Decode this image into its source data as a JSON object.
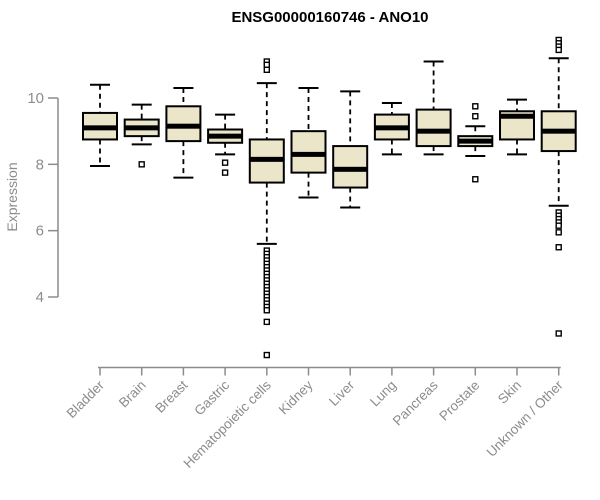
{
  "title": "ENSG00000160746 - ANO10",
  "colors": {
    "background": "#ffffff",
    "title": "#000000",
    "axis": "#8c8c8c",
    "box_fill": "#ebe6ca",
    "box_stroke": "#000000",
    "median": "#000000",
    "whisker": "#000000",
    "outlier_stroke": "#000000",
    "outlier_fill": "#ffffff"
  },
  "chart_data": {
    "type": "boxplot",
    "title": "ENSG00000160746 - ANO10",
    "xlabel": "",
    "ylabel": "Expression",
    "axis_y_range": [
      4,
      10
    ],
    "yticks": [
      10,
      8,
      6,
      4
    ],
    "grid": false,
    "legend": "none",
    "categories": [
      "Bladder",
      "Brain",
      "Breast",
      "Gastric",
      "Hematopoietic cells",
      "Kidney",
      "Liver",
      "Lung",
      "Pancreas",
      "Prostate",
      "Skin",
      "Unknown / Other"
    ],
    "series": [
      {
        "name": "Bladder",
        "whisker_low": 7.95,
        "q1": 8.75,
        "median": 9.1,
        "q3": 9.55,
        "whisker_high": 10.4,
        "outliers": []
      },
      {
        "name": "Brain",
        "whisker_low": 8.6,
        "q1": 8.85,
        "median": 9.1,
        "q3": 9.35,
        "whisker_high": 9.8,
        "outliers": [
          8.0
        ]
      },
      {
        "name": "Breast",
        "whisker_low": 7.6,
        "q1": 8.7,
        "median": 9.15,
        "q3": 9.75,
        "whisker_high": 10.3,
        "outliers": []
      },
      {
        "name": "Gastric",
        "whisker_low": 8.3,
        "q1": 8.65,
        "median": 8.85,
        "q3": 9.05,
        "whisker_high": 9.5,
        "outliers": [
          8.05,
          7.75
        ]
      },
      {
        "name": "Hematopoietic cells",
        "whisker_low": 5.6,
        "q1": 7.45,
        "median": 8.15,
        "q3": 8.75,
        "whisker_high": 10.45,
        "outliers": [
          11.1,
          11.0,
          10.85,
          5.4,
          5.3,
          5.2,
          5.1,
          5.0,
          4.9,
          4.8,
          4.7,
          4.6,
          4.5,
          4.4,
          4.3,
          4.2,
          4.1,
          4.0,
          3.9,
          3.8,
          3.7,
          3.6,
          3.25,
          2.25
        ]
      },
      {
        "name": "Kidney",
        "whisker_low": 7.0,
        "q1": 7.75,
        "median": 8.3,
        "q3": 9.0,
        "whisker_high": 10.3,
        "outliers": []
      },
      {
        "name": "Liver",
        "whisker_low": 6.7,
        "q1": 7.3,
        "median": 7.85,
        "q3": 8.55,
        "whisker_high": 10.2,
        "outliers": []
      },
      {
        "name": "Lung",
        "whisker_low": 8.3,
        "q1": 8.75,
        "median": 9.1,
        "q3": 9.5,
        "whisker_high": 9.85,
        "outliers": []
      },
      {
        "name": "Pancreas",
        "whisker_low": 8.3,
        "q1": 8.55,
        "median": 9.0,
        "q3": 9.65,
        "whisker_high": 11.1,
        "outliers": []
      },
      {
        "name": "Prostate",
        "whisker_low": 8.25,
        "q1": 8.55,
        "median": 8.7,
        "q3": 8.85,
        "whisker_high": 9.15,
        "outliers": [
          9.75,
          9.45,
          7.55
        ]
      },
      {
        "name": "Skin",
        "whisker_low": 8.3,
        "q1": 8.75,
        "median": 9.45,
        "q3": 9.6,
        "whisker_high": 9.95,
        "outliers": []
      },
      {
        "name": "Unknown / Other",
        "whisker_low": 6.75,
        "q1": 8.4,
        "median": 9.0,
        "q3": 9.6,
        "whisker_high": 11.2,
        "outliers": [
          11.75,
          11.65,
          11.55,
          11.45,
          6.55,
          6.45,
          6.35,
          6.25,
          6.15,
          5.95,
          5.5,
          2.9
        ]
      }
    ]
  }
}
